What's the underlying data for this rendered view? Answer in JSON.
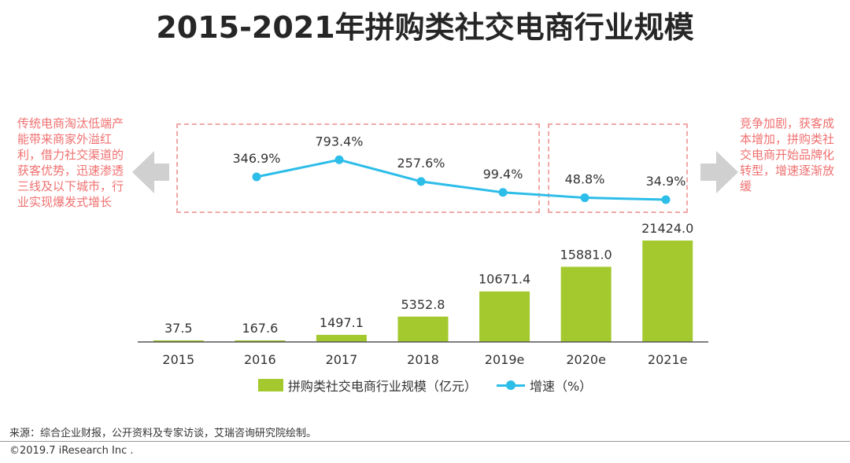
{
  "title": "2015-2021年拼购类社交电商行业规模",
  "notes": {
    "left": "传统电商淘汰低端产能带来商家外溢红利，借力社交渠道的获客优势，迅速渗透三线及以下城市，行业实现爆发式增长",
    "right": "竞争加剧，获客成本增加，拼购类社交电商开始品牌化转型，增速逐渐放缓"
  },
  "legend": {
    "bar": "拼购类社交电商行业规模（亿元）",
    "line": "增速（%）"
  },
  "source": "来源：综合企业财报，公开资料及专家访谈，艾瑞咨询研究院绘制。",
  "copyright": "©2019.7 iResearch Inc .",
  "colors": {
    "bar": "#a3c92e",
    "line": "#2cbde9",
    "dash": "#f0a7a7",
    "note": "#f07070"
  },
  "chart_data": {
    "type": "bar",
    "categories": [
      "2015",
      "2016",
      "2017",
      "2018",
      "2019e",
      "2020e",
      "2021e"
    ],
    "series": [
      {
        "name": "拼购类社交电商行业规模（亿元）",
        "type": "bar",
        "values": [
          37.5,
          167.6,
          1497.1,
          5352.8,
          10671.4,
          15881.0,
          21424.0
        ],
        "labels": [
          "37.5",
          "167.6",
          "1497.1",
          "5352.8",
          "10671.4",
          "15881.0",
          "21424.0"
        ]
      },
      {
        "name": "增速（%）",
        "type": "line",
        "values": [
          null,
          346.9,
          793.4,
          257.6,
          99.4,
          48.8,
          34.9
        ],
        "labels": [
          "",
          "346.9%",
          "793.4%",
          "257.6%",
          "99.4%",
          "48.8%",
          "34.9%"
        ]
      }
    ]
  }
}
